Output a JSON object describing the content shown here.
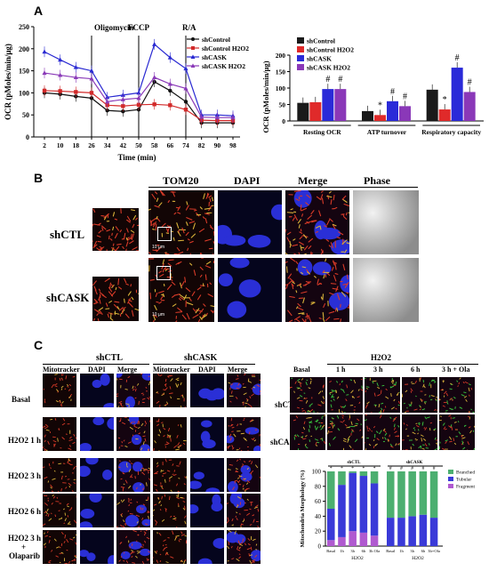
{
  "panelA": {
    "letter": "A",
    "line_chart": {
      "ylabel": "OCR (pMoles/min/μg)",
      "xlabel": "Time (min)",
      "xticks": [
        "2",
        "10",
        "18",
        "26",
        "34",
        "42",
        "50",
        "58",
        "66",
        "74",
        "82",
        "90",
        "98"
      ],
      "yticks": [
        "0",
        "50",
        "100",
        "150",
        "200",
        "250"
      ],
      "annotations": [
        "Oligomycin",
        "FCCP",
        "R/A"
      ],
      "legend": [
        "shControl",
        "shControl H2O2",
        "shCASK",
        "shCASK H2O2"
      ]
    },
    "bar_chart": {
      "ylabel": "OCR (pMoles/min/μg)",
      "yticks": [
        "0",
        "50",
        "100",
        "150",
        "200"
      ],
      "groups": [
        "Resting OCR",
        "ATP turnover",
        "Respiratory capacity"
      ],
      "legend": [
        "shControl",
        "shControl H2O2",
        "shCASK",
        "shCASK H2O2"
      ],
      "marks": [
        "#",
        "#",
        "*",
        "#",
        "#",
        "*",
        "#",
        "#"
      ]
    }
  },
  "panelB": {
    "letter": "B",
    "columns": [
      "TOM20",
      "DAPI",
      "Merge",
      "Phase"
    ],
    "rows": [
      "shCTL",
      "shCASK"
    ],
    "scale": "10 μm"
  },
  "panelC": {
    "letter": "C",
    "left_groups": [
      "shCTL",
      "shCASK"
    ],
    "left_columns": [
      "Mitotracker",
      "DAPI",
      "Merge",
      "Mitotracker",
      "DAPI",
      "Merge"
    ],
    "left_rows": [
      "Basal",
      "H2O2 1 h",
      "H2O2 3 h",
      "H2O2 6 h",
      "H2O2 3 h",
      "+",
      "Olaparib"
    ],
    "right_header": "H2O2",
    "right_columns": [
      "Basal",
      "1 h",
      "3 h",
      "6 h",
      "3 h + Ola"
    ],
    "right_rows": [
      "shCTL",
      "shCASK"
    ],
    "stack_chart": {
      "ylabel": "Mitochondria Morphology (%)",
      "yticks": [
        "0",
        "20",
        "40",
        "60",
        "80",
        "100"
      ],
      "groups": [
        "shCTL",
        "shCASK"
      ],
      "xticks": [
        "Basal",
        "1h",
        "3h",
        "6h",
        "3h Ola",
        "Basal",
        "1h",
        "3h",
        "6h",
        "3h+Ola"
      ],
      "xgroup": [
        "H2O2",
        "H2O2"
      ],
      "legend": [
        "Branched",
        "Tubular",
        "Fragment"
      ]
    }
  },
  "chart_data": [
    {
      "type": "line",
      "title": "",
      "xlabel": "Time (min)",
      "ylabel": "OCR (pMoles/min/μg)",
      "x": [
        2,
        10,
        18,
        26,
        34,
        42,
        50,
        58,
        66,
        74,
        82,
        90,
        98
      ],
      "ylim": [
        0,
        250
      ],
      "series": [
        {
          "name": "shControl",
          "color": "#111111",
          "values": [
            100,
            97,
            92,
            88,
            60,
            58,
            62,
            125,
            105,
            80,
            32,
            32,
            32
          ]
        },
        {
          "name": "shControl H2O2",
          "color": "#d22a2a",
          "values": [
            105,
            104,
            102,
            100,
            72,
            70,
            73,
            74,
            72,
            62,
            38,
            37,
            37
          ]
        },
        {
          "name": "shCASK",
          "color": "#2a2ad2",
          "values": [
            193,
            175,
            158,
            150,
            90,
            95,
            100,
            210,
            180,
            155,
            50,
            50,
            48
          ]
        },
        {
          "name": "shCASK H2O2",
          "color": "#8a3ab8",
          "values": [
            145,
            140,
            135,
            132,
            80,
            85,
            88,
            135,
            120,
            110,
            45,
            44,
            44
          ]
        }
      ]
    },
    {
      "type": "bar",
      "title": "",
      "ylabel": "OCR (pMoles/min/μg)",
      "categories": [
        "Resting OCR",
        "ATP turnover",
        "Respiratory capacity"
      ],
      "ylim": [
        0,
        200
      ],
      "series": [
        {
          "name": "shControl",
          "color": "#1a1a1a",
          "values": [
            55,
            30,
            95
          ]
        },
        {
          "name": "shControl H2O2",
          "color": "#e02a2a",
          "values": [
            57,
            18,
            35
          ]
        },
        {
          "name": "shCASK",
          "color": "#2a2ad8",
          "values": [
            97,
            60,
            162
          ]
        },
        {
          "name": "shCASK H2O2",
          "color": "#8a38b8",
          "values": [
            97,
            45,
            88
          ]
        }
      ]
    },
    {
      "type": "bar",
      "stacked": true,
      "ylabel": "Mitochondria Morphology (%)",
      "categories": [
        "Basal",
        "1h",
        "3h",
        "6h",
        "3h Ola",
        "Basal",
        "1h",
        "3h",
        "6h",
        "3h+Ola"
      ],
      "ylim": [
        0,
        100
      ],
      "series": [
        {
          "name": "Fragment",
          "color": "#b05ad0",
          "values": [
            8,
            12,
            20,
            18,
            14,
            0,
            0,
            0,
            0,
            0
          ]
        },
        {
          "name": "Tubular",
          "color": "#3a3ad8",
          "values": [
            42,
            70,
            78,
            76,
            70,
            38,
            38,
            40,
            42,
            38
          ]
        },
        {
          "name": "Branched",
          "color": "#4caf70",
          "values": [
            50,
            18,
            2,
            6,
            16,
            62,
            62,
            60,
            58,
            62
          ]
        }
      ]
    }
  ]
}
